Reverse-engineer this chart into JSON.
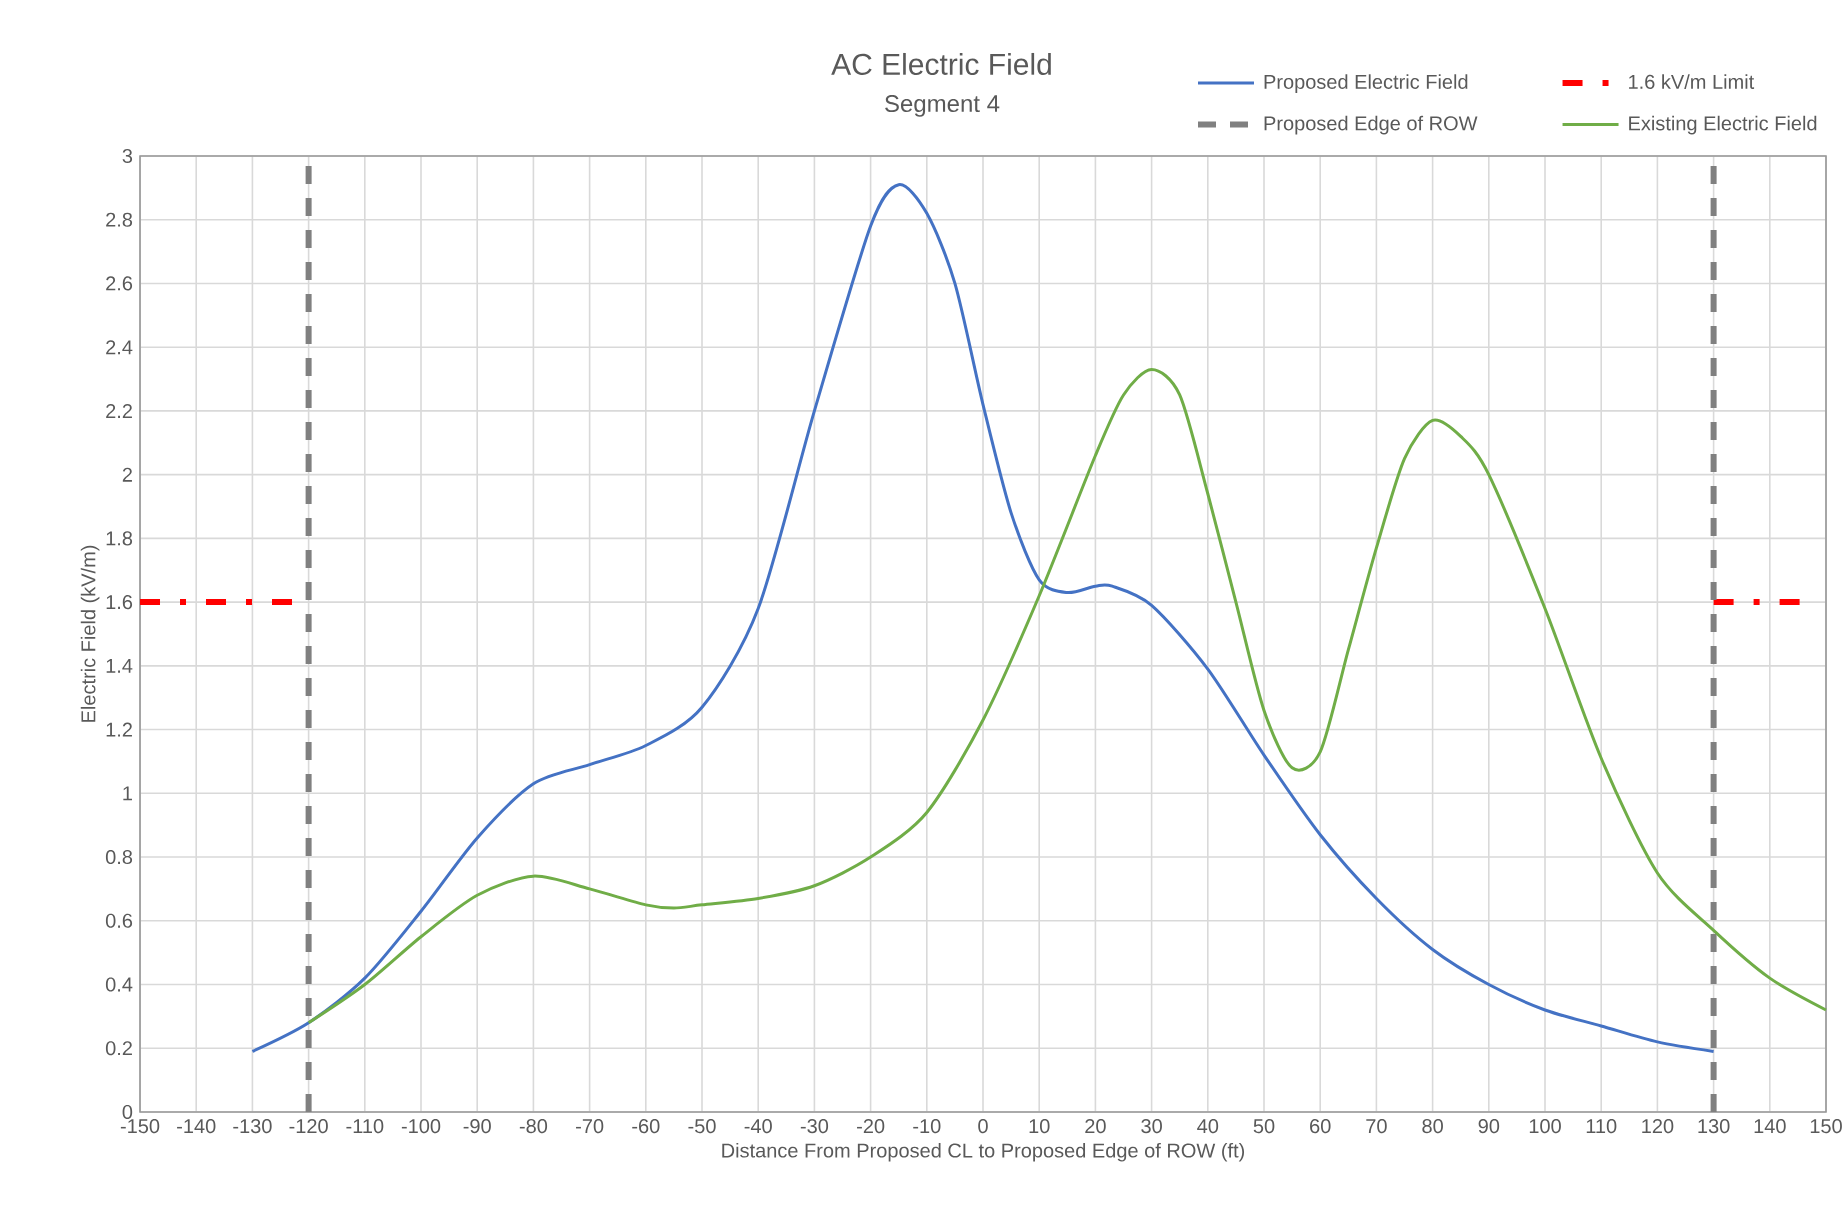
{
  "chart_data": {
    "type": "line",
    "title": "AC Electric Field",
    "subtitle": "Segment 4",
    "xlabel": "Distance From Proposed CL to Proposed Edge of ROW (ft)",
    "ylabel": "Electric Field (kV/m)",
    "xlim": [
      -150,
      150
    ],
    "ylim": [
      0,
      3
    ],
    "xticks": [
      -150,
      -140,
      -130,
      -120,
      -110,
      -100,
      -90,
      -80,
      -70,
      -60,
      -50,
      -40,
      -30,
      -20,
      -10,
      0,
      10,
      20,
      30,
      40,
      50,
      60,
      70,
      80,
      90,
      100,
      110,
      120,
      130,
      140,
      150
    ],
    "yticks": [
      0,
      0.2,
      0.4,
      0.6,
      0.8,
      1,
      1.2,
      1.4,
      1.6,
      1.8,
      2,
      2.2,
      2.4,
      2.6,
      2.8,
      3
    ],
    "grid": true,
    "legend": "top right",
    "series": [
      {
        "name": "Proposed Electric Field",
        "color": "#4472c4",
        "line_style": "solid",
        "x": [
          -130,
          -120,
          -110,
          -100,
          -90,
          -80,
          -70,
          -60,
          -50,
          -40,
          -30,
          -20,
          -15,
          -10,
          -5,
          0,
          5,
          10,
          15,
          20,
          23,
          30,
          40,
          50,
          60,
          70,
          80,
          90,
          100,
          110,
          120,
          130
        ],
        "values": [
          0.19,
          0.28,
          0.42,
          0.63,
          0.86,
          1.03,
          1.09,
          1.15,
          1.27,
          1.58,
          2.2,
          2.78,
          2.91,
          2.82,
          2.6,
          2.22,
          1.88,
          1.67,
          1.63,
          1.65,
          1.65,
          1.59,
          1.39,
          1.12,
          0.87,
          0.67,
          0.51,
          0.4,
          0.32,
          0.27,
          0.22,
          0.19
        ]
      },
      {
        "name": "1.6 kV/m Limit",
        "color": "#ff0000",
        "line_style": "dashdot",
        "x": [
          -150,
          -120,
          null,
          130,
          146
        ],
        "values": [
          1.6,
          1.6,
          null,
          1.6,
          1.6
        ]
      },
      {
        "name": "Proposed Edge of ROW",
        "color": "#808080",
        "line_style": "dashed",
        "x": [
          -120,
          -120,
          null,
          130,
          130
        ],
        "values": [
          0,
          3,
          null,
          0,
          3
        ]
      },
      {
        "name": "Existing Electric Field",
        "color": "#70ad47",
        "line_style": "solid",
        "x": [
          -120,
          -110,
          -100,
          -90,
          -80,
          -70,
          -60,
          -55,
          -50,
          -40,
          -30,
          -20,
          -10,
          0,
          10,
          20,
          25,
          30,
          35,
          40,
          45,
          50,
          55,
          60,
          65,
          70,
          75,
          80,
          85,
          90,
          100,
          110,
          120,
          130,
          140,
          150
        ],
        "values": [
          0.28,
          0.4,
          0.55,
          0.68,
          0.74,
          0.7,
          0.65,
          0.64,
          0.65,
          0.67,
          0.71,
          0.8,
          0.94,
          1.23,
          1.62,
          2.06,
          2.25,
          2.33,
          2.25,
          1.94,
          1.6,
          1.26,
          1.08,
          1.13,
          1.45,
          1.77,
          2.05,
          2.17,
          2.12,
          2.0,
          1.58,
          1.11,
          0.75,
          0.57,
          0.42,
          0.32
        ]
      }
    ]
  }
}
